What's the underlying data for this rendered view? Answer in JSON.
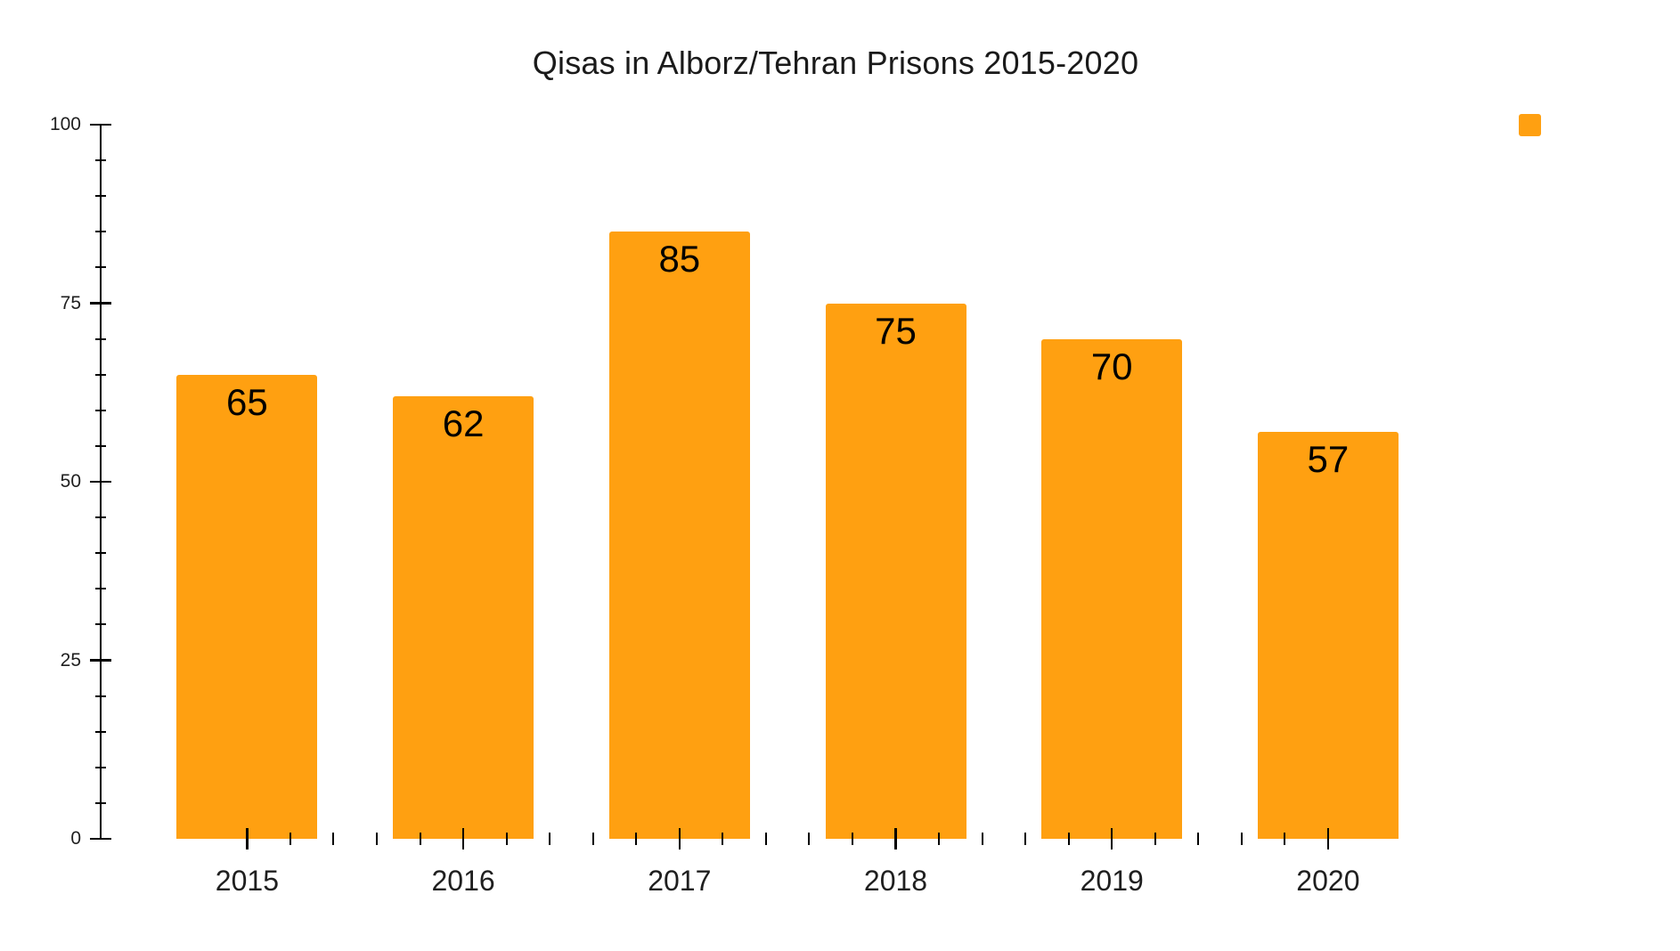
{
  "title": "Qisas in Alborz/Tehran Prisons 2015-2020",
  "colors": {
    "bar": "#FFA011",
    "axis": "#000000",
    "tick_label": "#1f1f1f",
    "value_label": "#000000",
    "background": "#FFFFFF"
  },
  "legend": {
    "position": "top-right",
    "swatch_color": "#FFA011",
    "label": ""
  },
  "chart_data": {
    "type": "bar",
    "title": "Qisas in Alborz/Tehran Prisons 2015-2020",
    "categories": [
      "2015",
      "2016",
      "2017",
      "2018",
      "2019",
      "2020"
    ],
    "values": [
      65,
      62,
      85,
      75,
      70,
      57
    ],
    "series_name": "",
    "xlabel": "",
    "ylabel": "",
    "ylim": [
      0,
      100
    ],
    "yticks": [
      0,
      25,
      50,
      75,
      100
    ],
    "y_minor_step": 5,
    "x_minor_divisions": 5,
    "grid": false,
    "x_axis_line": false,
    "data_labels": "inside-end",
    "legend_position": "top-right"
  }
}
